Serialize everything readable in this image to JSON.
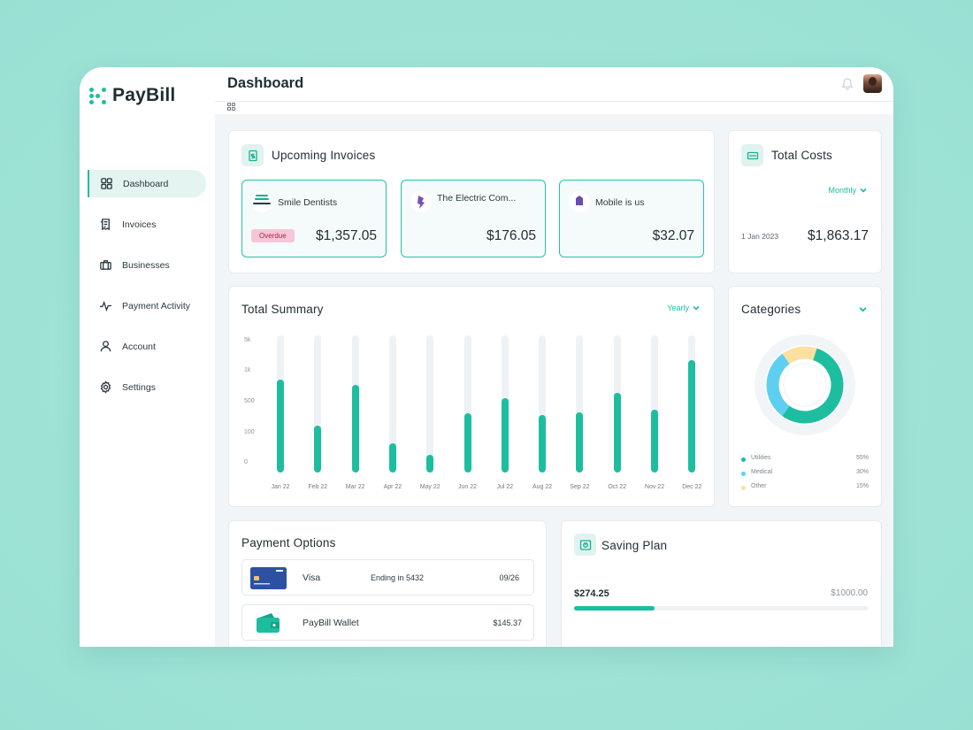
{
  "app": {
    "name": "PayBill"
  },
  "sidebar": {
    "items": [
      {
        "label": "Dashboard",
        "icon": "grid-icon",
        "active": true
      },
      {
        "label": "Invoices",
        "icon": "receipt-icon",
        "active": false
      },
      {
        "label": "Businesses",
        "icon": "briefcase-icon",
        "active": false
      },
      {
        "label": "Payment Activity",
        "icon": "activity-icon",
        "active": false
      },
      {
        "label": "Account",
        "icon": "user-icon",
        "active": false
      },
      {
        "label": "Settings",
        "icon": "gear-icon",
        "active": false
      }
    ]
  },
  "header": {
    "title": "Dashboard"
  },
  "upcoming": {
    "title": "Upcoming Invoices",
    "invoices": [
      {
        "name": "Smile Dentists",
        "amount": "$1,357.05",
        "badge": "Overdue"
      },
      {
        "name": "The Electric Com...",
        "amount": "$176.05"
      },
      {
        "name": "Mobile is us",
        "amount": "$32.07"
      }
    ]
  },
  "total_costs": {
    "title": "Total Costs",
    "period": "Monthly",
    "date": "1 Jan 2023",
    "amount": "$1,863.17"
  },
  "summary": {
    "title": "Total Summary",
    "period": "Yearly"
  },
  "chart_data": {
    "type": "bar",
    "title": "Total Summary",
    "y_ticks": [
      "5k",
      "1k",
      "500",
      "100",
      "0"
    ],
    "categories": [
      "Jan 22",
      "Feb 22",
      "Mar 22",
      "Apr 22",
      "May 22",
      "Jun 22",
      "Jul 22",
      "Aug 22",
      "Sep 22",
      "Oct 22",
      "Nov 22",
      "Dec 22"
    ],
    "values": [
      0.68,
      0.34,
      0.64,
      0.21,
      0.13,
      0.43,
      0.54,
      0.42,
      0.44,
      0.58,
      0.46,
      0.82
    ],
    "color": "#1dbe9f"
  },
  "categories": {
    "title": "Categories",
    "items": [
      {
        "label": "Utilities",
        "pct": "55%",
        "value": 55,
        "color": "#1dbe9f"
      },
      {
        "label": "Medical",
        "pct": "30%",
        "value": 30,
        "color": "#5ecff0"
      },
      {
        "label": "Other",
        "pct": "15%",
        "value": 15,
        "color": "#fce0a0"
      }
    ]
  },
  "payment_options": {
    "title": "Payment Options",
    "items": [
      {
        "name": "Visa",
        "detail": "Ending  in 5432",
        "value": "09/26",
        "icon": "credit-card-icon"
      },
      {
        "name": "PayBill Wallet",
        "detail": "",
        "value": "$145.37",
        "icon": "wallet-icon"
      }
    ]
  },
  "saving_plan": {
    "title": "Saving Plan",
    "current": "$274.25",
    "target": "$1000.00",
    "progress": 0.2743
  }
}
